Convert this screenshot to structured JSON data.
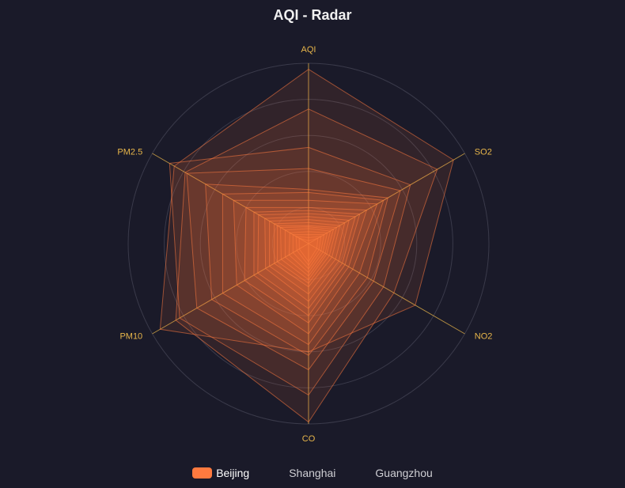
{
  "chart_data": {
    "type": "radar",
    "title": "AQI - Radar",
    "indicators": [
      {
        "name": "AQI",
        "max": 300
      },
      {
        "name": "SO2",
        "max": 250
      },
      {
        "name": "NO2",
        "max": 300
      },
      {
        "name": "CO",
        "max": 5
      },
      {
        "name": "PM10",
        "max": 200
      },
      {
        "name": "PM2.5",
        "max": 100
      }
    ],
    "series": [
      {
        "name": "Beijing",
        "color": "#ff7a3f",
        "shown": true,
        "values": [
          [
            290,
            232,
            205,
            3.0,
            190,
            86
          ],
          [
            224,
            206,
            164,
            4.95,
            170,
            79
          ],
          [
            160,
            163,
            144,
            4.2,
            165,
            89
          ],
          [
            125,
            147,
            125,
            3.5,
            143,
            78
          ],
          [
            90,
            127,
            113,
            3.1,
            124,
            66
          ],
          [
            85,
            120,
            98,
            2.8,
            110,
            55
          ],
          [
            72,
            110,
            85,
            2.5,
            92,
            48
          ],
          [
            60,
            93,
            77,
            2.2,
            82,
            40
          ],
          [
            55,
            82,
            70,
            2.0,
            70,
            35
          ],
          [
            50,
            75,
            65,
            1.8,
            65,
            32
          ],
          [
            45,
            65,
            58,
            1.6,
            55,
            28
          ],
          [
            40,
            58,
            52,
            1.4,
            50,
            25
          ],
          [
            35,
            50,
            45,
            1.2,
            44,
            22
          ],
          [
            30,
            45,
            40,
            1.1,
            40,
            20
          ],
          [
            28,
            40,
            35,
            1.0,
            35,
            18
          ],
          [
            25,
            35,
            32,
            0.9,
            30,
            15
          ],
          [
            20,
            30,
            28,
            0.8,
            25,
            12
          ],
          [
            15,
            25,
            24,
            0.7,
            20,
            10
          ],
          [
            10,
            20,
            20,
            0.6,
            15,
            8
          ],
          [
            5,
            15,
            16,
            0.5,
            12,
            6
          ]
        ]
      },
      {
        "name": "Shanghai",
        "color": "#d6d6dc",
        "shown": false,
        "values": []
      },
      {
        "name": "Guangzhou",
        "color": "#d6d6dc",
        "shown": false,
        "values": []
      }
    ],
    "legend_position": "bottom",
    "axis_color": "#e8b64a",
    "split_line_color": "#3a3a4a"
  }
}
